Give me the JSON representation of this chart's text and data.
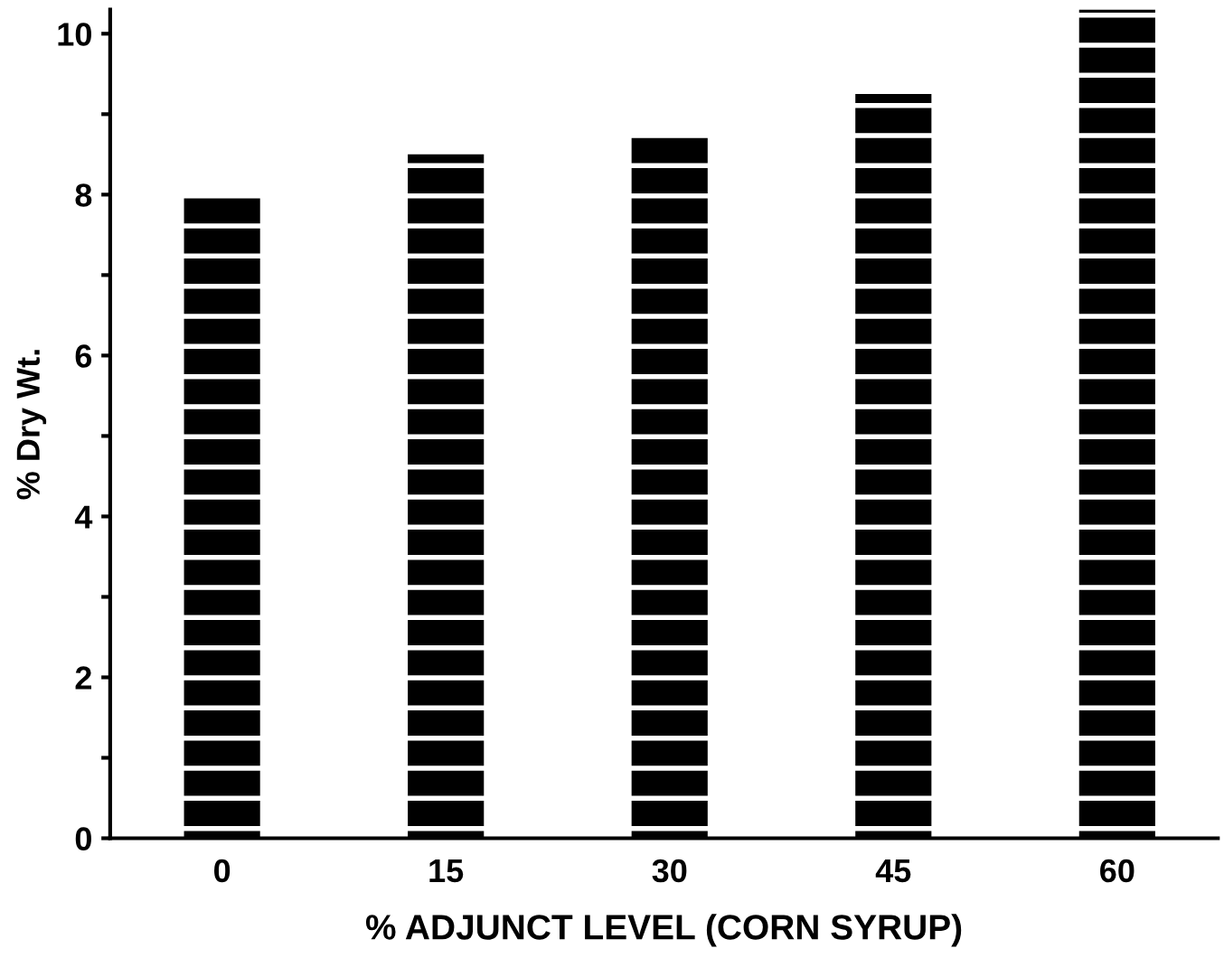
{
  "chart_data": {
    "type": "bar",
    "xlabel": "% ADJUNCT LEVEL (CORN SYRUP)",
    "ylabel": "% Dry Wt.",
    "categories": [
      "0",
      "15",
      "30",
      "45",
      "60"
    ],
    "values": [
      8.0,
      8.5,
      8.75,
      9.25,
      10.3
    ],
    "color": "#000000",
    "ylim": [
      0,
      10.3
    ],
    "yticks": [
      0,
      {
        "value": 1,
        "label": null
      },
      2,
      {
        "value": 3,
        "label": null
      },
      4,
      {
        "value": 5,
        "label": null
      },
      6,
      {
        "value": 7,
        "label": null
      },
      8,
      {
        "value": 9,
        "label": null
      },
      10
    ],
    "grid": false
  }
}
